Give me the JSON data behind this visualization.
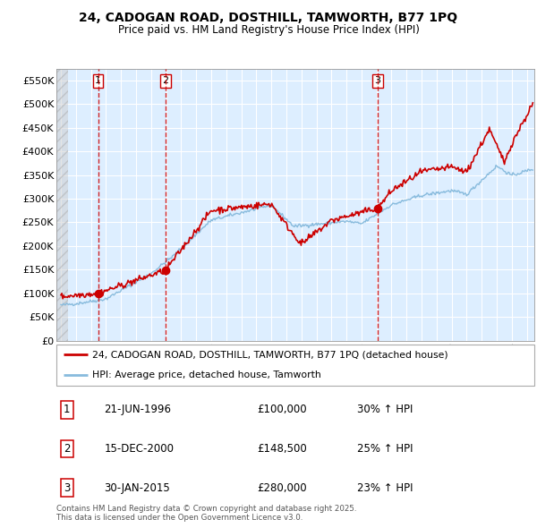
{
  "title1": "24, CADOGAN ROAD, DOSTHILL, TAMWORTH, B77 1PQ",
  "title2": "Price paid vs. HM Land Registry's House Price Index (HPI)",
  "ylim": [
    0,
    575000
  ],
  "yticks": [
    0,
    50000,
    100000,
    150000,
    200000,
    250000,
    300000,
    350000,
    400000,
    450000,
    500000,
    550000
  ],
  "ytick_labels": [
    "£0",
    "£50K",
    "£100K",
    "£150K",
    "£200K",
    "£250K",
    "£300K",
    "£350K",
    "£400K",
    "£450K",
    "£500K",
    "£550K"
  ],
  "xlim_start": 1993.7,
  "xlim_end": 2025.5,
  "transaction_dates": [
    1996.47,
    2000.96,
    2015.08
  ],
  "transaction_prices": [
    100000,
    148500,
    280000
  ],
  "transaction_labels": [
    "1",
    "2",
    "3"
  ],
  "sale_info": [
    {
      "num": "1",
      "date": "21-JUN-1996",
      "price": "£100,000",
      "hpi": "30% ↑ HPI"
    },
    {
      "num": "2",
      "date": "15-DEC-2000",
      "price": "£148,500",
      "hpi": "25% ↑ HPI"
    },
    {
      "num": "3",
      "date": "30-JAN-2015",
      "price": "£280,000",
      "hpi": "23% ↑ HPI"
    }
  ],
  "legend_line1": "24, CADOGAN ROAD, DOSTHILL, TAMWORTH, B77 1PQ (detached house)",
  "legend_line2": "HPI: Average price, detached house, Tamworth",
  "footer": "Contains HM Land Registry data © Crown copyright and database right 2025.\nThis data is licensed under the Open Government Licence v3.0.",
  "red_color": "#cc0000",
  "blue_color": "#88bbdd",
  "background_color": "#ddeeff",
  "grid_color": "#ffffff"
}
